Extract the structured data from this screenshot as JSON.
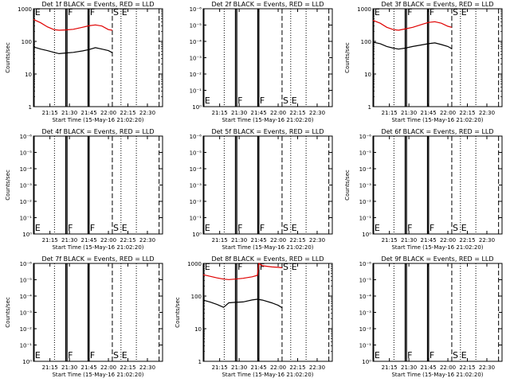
{
  "figure": {
    "xlabel": "Start Time (15-May-16 21:02:20)",
    "ylabel": "Counts/sec"
  },
  "chart_data": [
    {
      "type": "line",
      "title": "Det 1f BLACK = Events, RED = LLD",
      "xlabel": "Start Time (15-May-16 21:02:20)",
      "ylabel": "Counts/sec",
      "xlim": [
        "21:02:20",
        "22:41:40"
      ],
      "x_ticks": [
        "21:15",
        "21:30",
        "21:45",
        "22:00",
        "22:15",
        "22:30"
      ],
      "yscale": "log",
      "ylim": [
        1,
        1000
      ],
      "y_ticks": [
        "1",
        "10",
        "100",
        "1000"
      ],
      "markers": [
        {
          "time": "21:02:50",
          "style": "solid",
          "label": "E"
        },
        {
          "time": "21:18:30",
          "style": "dotted",
          "label": ""
        },
        {
          "time": "21:27:10",
          "style": "solid",
          "label": ""
        },
        {
          "time": "21:28:10",
          "style": "solid",
          "label": "F"
        },
        {
          "time": "21:44:20",
          "style": "solid",
          "label": ""
        },
        {
          "time": "21:45:10",
          "style": "solid",
          "label": "F"
        },
        {
          "time": "22:03:00",
          "style": "dashed",
          "label": "S"
        },
        {
          "time": "22:09:40",
          "style": "dotted",
          "label": "E"
        },
        {
          "time": "22:21:30",
          "style": "dotted",
          "label": ""
        },
        {
          "time": "22:39:00",
          "style": "dashed",
          "label": ""
        }
      ],
      "series": [
        {
          "color": "#e00000",
          "x": [
            "21:02:20",
            "21:08:00",
            "21:13:00",
            "21:18:00",
            "21:22:00",
            "21:27:00",
            "21:33:00",
            "21:40:00",
            "21:45:00",
            "21:50:00",
            "21:55:00",
            "22:00:00",
            "22:03:00"
          ],
          "values": [
            470,
            370,
            280,
            230,
            220,
            225,
            235,
            270,
            300,
            320,
            295,
            230,
            220
          ]
        },
        {
          "color": "#000000",
          "x": [
            "21:02:20",
            "21:08:00",
            "21:13:00",
            "21:18:00",
            "21:22:00",
            "21:27:00",
            "21:33:00",
            "21:40:00",
            "21:45:00",
            "21:50:00",
            "21:55:00",
            "22:00:00",
            "22:03:00"
          ],
          "values": [
            68,
            58,
            52,
            46,
            42,
            44,
            46,
            51,
            56,
            64,
            58,
            52,
            45
          ]
        }
      ]
    },
    {
      "type": "line",
      "title": "Det 2f BLACK = Events, RED = LLD",
      "xlabel": "Start Time (15-May-16 21:02:20)",
      "ylabel": "",
      "xlim": [
        "21:02:20",
        "22:41:40"
      ],
      "x_ticks": [
        "21:15",
        "21:30",
        "21:45",
        "22:00",
        "22:15",
        "22:30"
      ],
      "yscale": "log",
      "y_ticks": [
        "10⁰",
        "10⁻¹",
        "10⁻²",
        "10⁻³",
        "10⁻⁴",
        "10⁻⁵",
        "10⁻⁶"
      ],
      "markers": [
        {
          "time": "21:02:50",
          "style": "solid",
          "label": "E"
        },
        {
          "time": "21:18:30",
          "style": "dotted",
          "label": ""
        },
        {
          "time": "21:27:10",
          "style": "solid",
          "label": ""
        },
        {
          "time": "21:28:10",
          "style": "solid",
          "label": "F"
        },
        {
          "time": "21:44:20",
          "style": "solid",
          "label": ""
        },
        {
          "time": "21:45:10",
          "style": "solid",
          "label": "F"
        },
        {
          "time": "22:03:00",
          "style": "dashed",
          "label": "S"
        },
        {
          "time": "22:09:40",
          "style": "dotted",
          "label": "E"
        },
        {
          "time": "22:21:30",
          "style": "dotted",
          "label": ""
        },
        {
          "time": "22:39:00",
          "style": "dashed",
          "label": ""
        }
      ],
      "series": []
    },
    {
      "type": "line",
      "title": "Det 3f BLACK = Events, RED = LLD",
      "xlabel": "Start Time (15-May-16 21:02:20)",
      "ylabel": "Counts/sec",
      "xlim": [
        "21:02:20",
        "22:41:40"
      ],
      "x_ticks": [
        "21:15",
        "21:30",
        "21:45",
        "22:00",
        "22:15",
        "22:30"
      ],
      "yscale": "log",
      "ylim": [
        1,
        1000
      ],
      "y_ticks": [
        "1",
        "10",
        "100",
        "1000"
      ],
      "markers": [
        {
          "time": "21:02:50",
          "style": "solid",
          "label": "E"
        },
        {
          "time": "21:18:30",
          "style": "dotted",
          "label": ""
        },
        {
          "time": "21:27:10",
          "style": "solid",
          "label": ""
        },
        {
          "time": "21:28:10",
          "style": "solid",
          "label": "F"
        },
        {
          "time": "21:44:20",
          "style": "solid",
          "label": ""
        },
        {
          "time": "21:45:10",
          "style": "solid",
          "label": "F"
        },
        {
          "time": "22:03:00",
          "style": "dashed",
          "label": "S"
        },
        {
          "time": "22:09:40",
          "style": "dotted",
          "label": "E"
        },
        {
          "time": "22:21:30",
          "style": "dotted",
          "label": ""
        },
        {
          "time": "22:39:00",
          "style": "dashed",
          "label": ""
        }
      ],
      "series": [
        {
          "color": "#e00000",
          "x": [
            "21:02:20",
            "21:08:00",
            "21:13:00",
            "21:18:00",
            "21:22:00",
            "21:27:00",
            "21:33:00",
            "21:40:00",
            "21:45:00",
            "21:50:00",
            "21:55:00",
            "22:00:00",
            "22:03:00"
          ],
          "values": [
            440,
            360,
            270,
            230,
            220,
            240,
            270,
            330,
            380,
            400,
            360,
            290,
            270
          ]
        },
        {
          "color": "#000000",
          "x": [
            "21:02:20",
            "21:08:00",
            "21:13:00",
            "21:18:00",
            "21:22:00",
            "21:27:00",
            "21:33:00",
            "21:40:00",
            "21:45:00",
            "21:50:00",
            "21:55:00",
            "22:00:00",
            "22:03:00"
          ],
          "values": [
            95,
            85,
            70,
            62,
            58,
            62,
            70,
            78,
            85,
            90,
            80,
            70,
            60
          ]
        }
      ]
    },
    {
      "type": "line",
      "title": "Det 4f BLACK = Events, RED = LLD",
      "xlabel": "Start Time (15-May-16 21:02:20)",
      "ylabel": "Counts/sec",
      "xlim": [
        "21:02:20",
        "22:41:40"
      ],
      "x_ticks": [
        "21:15",
        "21:30",
        "21:45",
        "22:00",
        "22:15",
        "22:30"
      ],
      "yscale": "log",
      "y_ticks": [
        "10⁰",
        "10⁻¹",
        "10⁻²",
        "10⁻³",
        "10⁻⁴",
        "10⁻⁵",
        "10⁻⁶"
      ],
      "markers": [
        {
          "time": "21:02:50",
          "style": "solid",
          "label": "E"
        },
        {
          "time": "21:18:30",
          "style": "dotted",
          "label": ""
        },
        {
          "time": "21:27:10",
          "style": "solid",
          "label": ""
        },
        {
          "time": "21:28:10",
          "style": "solid",
          "label": "F"
        },
        {
          "time": "21:44:20",
          "style": "solid",
          "label": ""
        },
        {
          "time": "21:45:10",
          "style": "solid",
          "label": "F"
        },
        {
          "time": "22:03:00",
          "style": "dashed",
          "label": "S"
        },
        {
          "time": "22:09:40",
          "style": "dotted",
          "label": "E"
        },
        {
          "time": "22:21:30",
          "style": "dotted",
          "label": ""
        },
        {
          "time": "22:39:00",
          "style": "dashed",
          "label": ""
        }
      ],
      "series": []
    },
    {
      "type": "line",
      "title": "Det 5f BLACK = Events, RED = LLD",
      "xlabel": "Start Time (15-May-16 21:02:20)",
      "ylabel": "",
      "xlim": [
        "21:02:20",
        "22:41:40"
      ],
      "x_ticks": [
        "21:15",
        "21:30",
        "21:45",
        "22:00",
        "22:15",
        "22:30"
      ],
      "yscale": "log",
      "y_ticks": [
        "10⁰",
        "10⁻¹",
        "10⁻²",
        "10⁻³",
        "10⁻⁴",
        "10⁻⁵",
        "10⁻⁶"
      ],
      "markers": [
        {
          "time": "21:02:50",
          "style": "solid",
          "label": "E"
        },
        {
          "time": "21:18:30",
          "style": "dotted",
          "label": ""
        },
        {
          "time": "21:27:10",
          "style": "solid",
          "label": ""
        },
        {
          "time": "21:28:10",
          "style": "solid",
          "label": "F"
        },
        {
          "time": "21:44:20",
          "style": "solid",
          "label": ""
        },
        {
          "time": "21:45:10",
          "style": "solid",
          "label": "F"
        },
        {
          "time": "22:03:00",
          "style": "dashed",
          "label": "S"
        },
        {
          "time": "22:09:40",
          "style": "dotted",
          "label": "E"
        },
        {
          "time": "22:21:30",
          "style": "dotted",
          "label": ""
        },
        {
          "time": "22:39:00",
          "style": "dashed",
          "label": ""
        }
      ],
      "series": []
    },
    {
      "type": "line",
      "title": "Det 6f BLACK = Events, RED = LLD",
      "xlabel": "Start Time (15-May-16 21:02:20)",
      "ylabel": "Counts/sec",
      "xlim": [
        "21:02:20",
        "22:41:40"
      ],
      "x_ticks": [
        "21:15",
        "21:30",
        "21:45",
        "22:00",
        "22:15",
        "22:30"
      ],
      "yscale": "log",
      "y_ticks": [
        "10⁰",
        "10⁻¹",
        "10⁻²",
        "10⁻³",
        "10⁻⁴",
        "10⁻⁵",
        "10⁻⁶"
      ],
      "markers": [
        {
          "time": "21:02:50",
          "style": "solid",
          "label": "E"
        },
        {
          "time": "21:18:30",
          "style": "dotted",
          "label": ""
        },
        {
          "time": "21:27:10",
          "style": "solid",
          "label": ""
        },
        {
          "time": "21:28:10",
          "style": "solid",
          "label": "F"
        },
        {
          "time": "21:44:20",
          "style": "solid",
          "label": ""
        },
        {
          "time": "21:45:10",
          "style": "solid",
          "label": "F"
        },
        {
          "time": "22:03:00",
          "style": "dashed",
          "label": "S"
        },
        {
          "time": "22:09:40",
          "style": "dotted",
          "label": "E"
        },
        {
          "time": "22:21:30",
          "style": "dotted",
          "label": ""
        },
        {
          "time": "22:39:00",
          "style": "dashed",
          "label": ""
        }
      ],
      "series": []
    },
    {
      "type": "line",
      "title": "Det 7f BLACK = Events, RED = LLD",
      "xlabel": "Start Time (15-May-16 21:02:20)",
      "ylabel": "Counts/sec",
      "xlim": [
        "21:02:20",
        "22:41:40"
      ],
      "x_ticks": [
        "21:15",
        "21:30",
        "21:45",
        "22:00",
        "22:15",
        "22:30"
      ],
      "yscale": "log",
      "y_ticks": [
        "10⁰",
        "10⁻¹",
        "10⁻²",
        "10⁻³",
        "10⁻⁴",
        "10⁻⁵",
        "10⁻⁶"
      ],
      "markers": [
        {
          "time": "21:02:50",
          "style": "solid",
          "label": "E"
        },
        {
          "time": "21:18:30",
          "style": "dotted",
          "label": ""
        },
        {
          "time": "21:27:10",
          "style": "solid",
          "label": ""
        },
        {
          "time": "21:28:10",
          "style": "solid",
          "label": "F"
        },
        {
          "time": "21:44:20",
          "style": "solid",
          "label": ""
        },
        {
          "time": "21:45:10",
          "style": "solid",
          "label": "F"
        },
        {
          "time": "22:03:00",
          "style": "dashed",
          "label": "S"
        },
        {
          "time": "22:09:40",
          "style": "dotted",
          "label": "E"
        },
        {
          "time": "22:21:30",
          "style": "dotted",
          "label": ""
        },
        {
          "time": "22:39:00",
          "style": "dashed",
          "label": ""
        }
      ],
      "series": []
    },
    {
      "type": "line",
      "title": "Det 8f BLACK = Events, RED = LLD",
      "xlabel": "Start Time (15-May-16 21:02:20)",
      "ylabel": "Counts/sec",
      "xlim": [
        "21:02:20",
        "22:41:40"
      ],
      "x_ticks": [
        "21:15",
        "21:30",
        "21:45",
        "22:00",
        "22:15",
        "22:30"
      ],
      "yscale": "log",
      "ylim": [
        1,
        1000
      ],
      "y_ticks": [
        "1",
        "10",
        "100",
        "1000"
      ],
      "markers": [
        {
          "time": "21:02:50",
          "style": "solid",
          "label": "E"
        },
        {
          "time": "21:18:30",
          "style": "dotted",
          "label": ""
        },
        {
          "time": "21:27:10",
          "style": "solid",
          "label": ""
        },
        {
          "time": "21:28:10",
          "style": "solid",
          "label": "F"
        },
        {
          "time": "21:44:20",
          "style": "solid",
          "label": ""
        },
        {
          "time": "21:45:10",
          "style": "solid",
          "label": "F"
        },
        {
          "time": "22:03:00",
          "style": "dashed",
          "label": "S"
        },
        {
          "time": "22:09:40",
          "style": "dotted",
          "label": "E"
        },
        {
          "time": "22:21:30",
          "style": "dotted",
          "label": ""
        },
        {
          "time": "22:39:00",
          "style": "dashed",
          "label": ""
        }
      ],
      "series": [
        {
          "color": "#e00000",
          "x": [
            "21:02:20",
            "21:08:00",
            "21:13:00",
            "21:18:00",
            "21:22:00",
            "21:27:00",
            "21:33:00",
            "21:40:00",
            "21:44:00",
            "21:45:10",
            "21:48:00",
            "21:55:00",
            "22:00:00",
            "22:03:00"
          ],
          "values": [
            450,
            400,
            360,
            330,
            320,
            330,
            350,
            390,
            430,
            1000,
            850,
            780,
            760,
            740
          ]
        },
        {
          "color": "#000000",
          "x": [
            "21:02:20",
            "21:08:00",
            "21:13:00",
            "21:18:00",
            "21:22:00",
            "21:27:00",
            "21:33:00",
            "21:40:00",
            "21:44:00",
            "21:48:00",
            "21:55:00",
            "22:00:00",
            "22:03:00"
          ],
          "values": [
            75,
            65,
            55,
            45,
            62,
            64,
            66,
            76,
            80,
            75,
            62,
            52,
            44
          ]
        }
      ]
    },
    {
      "type": "line",
      "title": "Det 9f BLACK = Events, RED = LLD",
      "xlabel": "Start Time (15-May-16 21:02:20)",
      "ylabel": "",
      "xlim": [
        "21:02:20",
        "22:41:40"
      ],
      "x_ticks": [
        "21:15",
        "21:30",
        "21:45",
        "22:00",
        "22:15",
        "22:30"
      ],
      "yscale": "log",
      "y_ticks": [
        "10⁰",
        "10⁻¹",
        "10⁻²",
        "10⁻³",
        "10⁻⁴",
        "10⁻⁵",
        "10⁻⁶"
      ],
      "markers": [
        {
          "time": "21:02:50",
          "style": "solid",
          "label": "E"
        },
        {
          "time": "21:18:30",
          "style": "dotted",
          "label": ""
        },
        {
          "time": "21:27:10",
          "style": "solid",
          "label": ""
        },
        {
          "time": "21:28:10",
          "style": "solid",
          "label": "F"
        },
        {
          "time": "21:44:20",
          "style": "solid",
          "label": ""
        },
        {
          "time": "21:45:10",
          "style": "solid",
          "label": "F"
        },
        {
          "time": "22:03:00",
          "style": "dashed",
          "label": "S"
        },
        {
          "time": "22:09:40",
          "style": "dotted",
          "label": "E"
        },
        {
          "time": "22:21:30",
          "style": "dotted",
          "label": ""
        },
        {
          "time": "22:39:00",
          "style": "dashed",
          "label": ""
        }
      ],
      "series": []
    }
  ]
}
